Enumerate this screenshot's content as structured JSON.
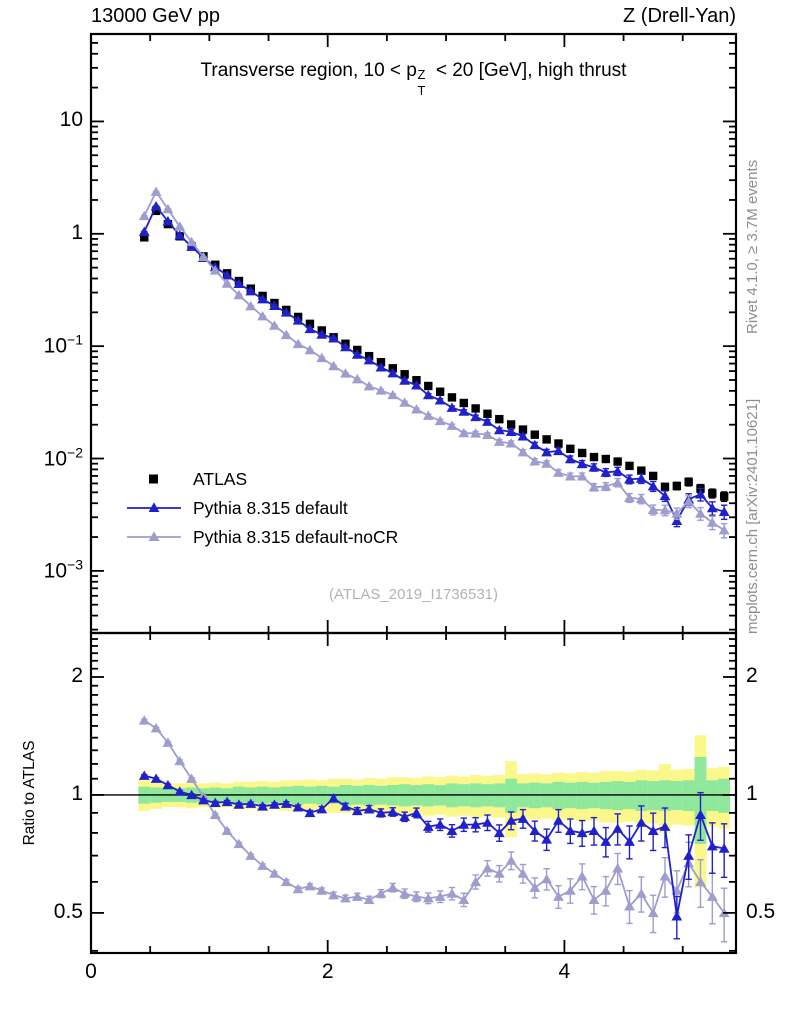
{
  "header": {
    "left": "13000 GeV pp",
    "right": "Z (Drell-Yan)"
  },
  "panel_title": {
    "prefix": "Transverse region, 10 < p",
    "sup": "Z",
    "sub": "T",
    "suffix": " < 20 [GeV], high thrust"
  },
  "watermark": "(ATLAS_2019_I1736531)",
  "side_notes": {
    "top": "Rivet 4.1.0, ≥ 3.7M events",
    "bottom": "mcplots.cern.ch [arXiv:2401.10621]"
  },
  "legend": {
    "items": [
      {
        "label": "ATLAS",
        "marker": "square",
        "color": "#000000"
      },
      {
        "label": "Pythia 8.315 default",
        "marker": "triangle-line",
        "color": "#2121cc"
      },
      {
        "label": "Pythia 8.315 default-noCR",
        "marker": "triangle-line",
        "color": "#9d9dce"
      }
    ]
  },
  "axes": {
    "x": {
      "max": 5.45,
      "minor_step": 0.5,
      "ticks": [
        {
          "label": "0",
          "v": 0
        },
        {
          "label": "2",
          "v": 2
        },
        {
          "label": "4",
          "v": 4
        }
      ]
    },
    "main_y": {
      "scale": "log",
      "range": [
        0.00028,
        60
      ],
      "ticks": [
        {
          "base": "10",
          "exp": "",
          "v": 10
        },
        {
          "base": "1",
          "exp": "",
          "v": 1
        },
        {
          "base": "10",
          "exp": "−1",
          "v": 0.1
        },
        {
          "base": "10",
          "exp": "−2",
          "v": 0.01
        },
        {
          "base": "10",
          "exp": "−3",
          "v": 0.001
        }
      ]
    },
    "ratio_y": {
      "scale": "log",
      "range": [
        0.395,
        2.59
      ],
      "label": "Ratio to ATLAS",
      "ticks": [
        {
          "label": "2",
          "v": 2
        },
        {
          "label": "1",
          "v": 1
        },
        {
          "label": "0.5",
          "v": 0.5
        }
      ]
    }
  },
  "colors": {
    "atlas": "#000000",
    "pythia_default": "#2121cc",
    "pythia_nocr": "#9d9dce",
    "band_inner_green": "#8fe89b",
    "band_outer_yellow": "#fbf88b",
    "watermark": "#b2b2b2",
    "side_note": "#8e8e8e"
  },
  "chart_data": {
    "type": "line",
    "title": "Transverse region, 10 < pT(Z) < 20 [GeV], high thrust",
    "x_start": 0.45,
    "x_step": 0.1,
    "n_points": 50,
    "x_range": [
      0,
      5.45
    ],
    "main_y_scale": "log",
    "main_y_range": [
      0.00028,
      60
    ],
    "ratio_y_scale": "log",
    "ratio_y_range": [
      0.395,
      2.59
    ],
    "legend_position": "left-middle",
    "grid": false,
    "series": [
      {
        "name": "ATLAS",
        "marker": "square",
        "color": "#000000",
        "values": [
          0.93,
          1.6,
          1.22,
          0.95,
          0.77,
          0.63,
          0.53,
          0.445,
          0.38,
          0.325,
          0.28,
          0.242,
          0.21,
          0.182,
          0.158,
          0.138,
          0.12,
          0.105,
          0.0925,
          0.0815,
          0.072,
          0.0635,
          0.0562,
          0.0498,
          0.0442,
          0.0393,
          0.035,
          0.0312,
          0.0279,
          0.025,
          0.0224,
          0.0201,
          0.0181,
          0.0163,
          0.0148,
          0.0136,
          0.0122,
          0.0112,
          0.0103,
          0.0099,
          0.0094,
          0.0086,
          0.0078,
          0.007,
          0.0056,
          0.0057,
          0.0062,
          0.0054,
          0.0049,
          0.0046
        ]
      },
      {
        "name": "Pythia 8.315 default",
        "marker": "triangle",
        "color": "#2121cc",
        "ratio_to_atlas": [
          1.12,
          1.1,
          1.06,
          1.02,
          1.0,
          0.97,
          0.955,
          0.96,
          0.945,
          0.95,
          0.935,
          0.945,
          0.95,
          0.93,
          0.9,
          0.92,
          0.98,
          0.935,
          0.91,
          0.92,
          0.9,
          0.905,
          0.88,
          0.9,
          0.83,
          0.84,
          0.81,
          0.84,
          0.84,
          0.85,
          0.8,
          0.86,
          0.87,
          0.81,
          0.77,
          0.86,
          0.81,
          0.8,
          0.81,
          0.76,
          0.82,
          0.76,
          0.85,
          0.81,
          0.83,
          0.49,
          0.7,
          0.89,
          0.74,
          0.73
        ]
      },
      {
        "name": "Pythia 8.315 default-noCR",
        "marker": "triangle",
        "color": "#9d9dce",
        "ratio_to_atlas": [
          1.55,
          1.48,
          1.36,
          1.22,
          1.1,
          0.99,
          0.89,
          0.81,
          0.75,
          0.7,
          0.66,
          0.63,
          0.6,
          0.575,
          0.585,
          0.57,
          0.555,
          0.545,
          0.55,
          0.54,
          0.56,
          0.58,
          0.56,
          0.55,
          0.545,
          0.55,
          0.56,
          0.54,
          0.6,
          0.65,
          0.63,
          0.68,
          0.63,
          0.58,
          0.61,
          0.55,
          0.57,
          0.62,
          0.54,
          0.57,
          0.65,
          0.52,
          0.56,
          0.5,
          0.62,
          0.57,
          0.67,
          0.6,
          0.55,
          0.5
        ]
      }
    ],
    "mc_frac_err": [
      0.004,
      0.004,
      0.004,
      0.005,
      0.005,
      0.005,
      0.006,
      0.006,
      0.007,
      0.007,
      0.008,
      0.008,
      0.009,
      0.01,
      0.011,
      0.012,
      0.013,
      0.014,
      0.015,
      0.016,
      0.018,
      0.019,
      0.021,
      0.022,
      0.024,
      0.026,
      0.028,
      0.03,
      0.032,
      0.035,
      0.037,
      0.04,
      0.042,
      0.045,
      0.048,
      0.051,
      0.055,
      0.058,
      0.062,
      0.066,
      0.07,
      0.074,
      0.079,
      0.084,
      0.089,
      0.095,
      0.1,
      0.107,
      0.113,
      0.12
    ],
    "atlas_band_green_halfwidth": [
      0.05,
      0.045,
      0.04,
      0.04,
      0.045,
      0.04,
      0.045,
      0.04,
      0.05,
      0.045,
      0.05,
      0.045,
      0.05,
      0.055,
      0.05,
      0.055,
      0.05,
      0.06,
      0.055,
      0.06,
      0.055,
      0.06,
      0.065,
      0.06,
      0.065,
      0.06,
      0.07,
      0.065,
      0.07,
      0.065,
      0.07,
      0.1,
      0.07,
      0.075,
      0.07,
      0.08,
      0.075,
      0.08,
      0.075,
      0.08,
      0.085,
      0.08,
      0.09,
      0.085,
      0.09,
      0.085,
      0.09,
      0.25,
      0.09,
      0.1
    ],
    "atlas_band_yellow_halfwidth": [
      0.09,
      0.08,
      0.07,
      0.07,
      0.075,
      0.07,
      0.075,
      0.07,
      0.08,
      0.08,
      0.085,
      0.08,
      0.09,
      0.09,
      0.095,
      0.09,
      0.1,
      0.1,
      0.095,
      0.105,
      0.1,
      0.11,
      0.11,
      0.105,
      0.115,
      0.11,
      0.12,
      0.115,
      0.125,
      0.12,
      0.125,
      0.22,
      0.13,
      0.135,
      0.13,
      0.14,
      0.135,
      0.145,
      0.14,
      0.15,
      0.15,
      0.145,
      0.16,
      0.155,
      0.2,
      0.16,
      0.165,
      0.42,
      0.17,
      0.18
    ],
    "band_colors": {
      "inner": "#8fe89b",
      "outer": "#fbf88b"
    }
  }
}
